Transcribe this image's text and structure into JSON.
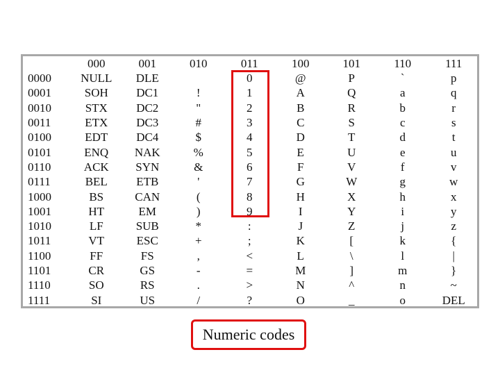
{
  "table": {
    "column_headers": [
      "000",
      "001",
      "010",
      "011",
      "100",
      "101",
      "110",
      "111"
    ],
    "rows": [
      {
        "code": "0000",
        "cells": [
          "NULL",
          "DLE",
          "",
          "0",
          "@",
          "P",
          "`",
          "p"
        ]
      },
      {
        "code": "0001",
        "cells": [
          "SOH",
          "DC1",
          "!",
          "1",
          "A",
          "Q",
          "a",
          "q"
        ]
      },
      {
        "code": "0010",
        "cells": [
          "STX",
          "DC2",
          "\"",
          "2",
          "B",
          "R",
          "b",
          "r"
        ]
      },
      {
        "code": "0011",
        "cells": [
          "ETX",
          "DC3",
          "#",
          "3",
          "C",
          "S",
          "c",
          "s"
        ]
      },
      {
        "code": "0100",
        "cells": [
          "EDT",
          "DC4",
          "$",
          "4",
          "D",
          "T",
          "d",
          "t"
        ]
      },
      {
        "code": "0101",
        "cells": [
          "ENQ",
          "NAK",
          "%",
          "5",
          "E",
          "U",
          "e",
          "u"
        ]
      },
      {
        "code": "0110",
        "cells": [
          "ACK",
          "SYN",
          "&",
          "6",
          "F",
          "V",
          "f",
          "v"
        ]
      },
      {
        "code": "0111",
        "cells": [
          "BEL",
          "ETB",
          "'",
          "7",
          "G",
          "W",
          "g",
          "w"
        ]
      },
      {
        "code": "1000",
        "cells": [
          "BS",
          "CAN",
          "(",
          "8",
          "H",
          "X",
          "h",
          "x"
        ]
      },
      {
        "code": "1001",
        "cells": [
          "HT",
          "EM",
          ")",
          "9",
          "I",
          "Y",
          "i",
          "y"
        ]
      },
      {
        "code": "1010",
        "cells": [
          "LF",
          "SUB",
          "*",
          ":",
          "J",
          "Z",
          "j",
          "z"
        ]
      },
      {
        "code": "1011",
        "cells": [
          "VT",
          "ESC",
          "+",
          ";",
          "K",
          "[",
          "k",
          "{"
        ]
      },
      {
        "code": "1100",
        "cells": [
          "FF",
          "FS",
          ",",
          "<",
          "L",
          "\\",
          "l",
          "|"
        ]
      },
      {
        "code": "1101",
        "cells": [
          "CR",
          "GS",
          "-",
          "=",
          "M",
          "]",
          "m",
          "}"
        ]
      },
      {
        "code": "1110",
        "cells": [
          "SO",
          "RS",
          ".",
          ">",
          "N",
          "^",
          "n",
          "~"
        ]
      },
      {
        "code": "1111",
        "cells": [
          "SI",
          "US",
          "/",
          "?",
          "O",
          "_",
          "o",
          "DEL"
        ]
      }
    ]
  },
  "caption": "Numeric codes",
  "colors": {
    "highlight": "#e01010",
    "frame": "#a8a8a8"
  }
}
